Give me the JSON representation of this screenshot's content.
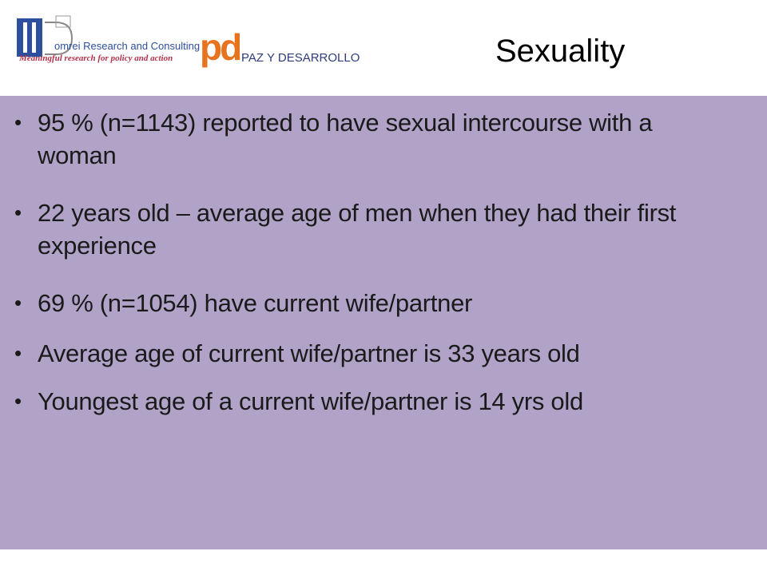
{
  "header": {
    "title": "Sexuality",
    "logos": [
      {
        "name": "omrei Research and Consulting",
        "tagline": "Meaningful research for policy and action"
      },
      {
        "mark": "pd",
        "name": "PAZ Y DESARROLLO"
      }
    ]
  },
  "bullets": [
    "95 % (n=1143) reported to have sexual intercourse with a woman",
    "22 years old – average age of men when they had their first experience",
    "69 % (n=1054) have current wife/partner",
    "Average age of current wife/partner is 33 years old",
    "Youngest age of a current wife/partner is 14 yrs old"
  ]
}
